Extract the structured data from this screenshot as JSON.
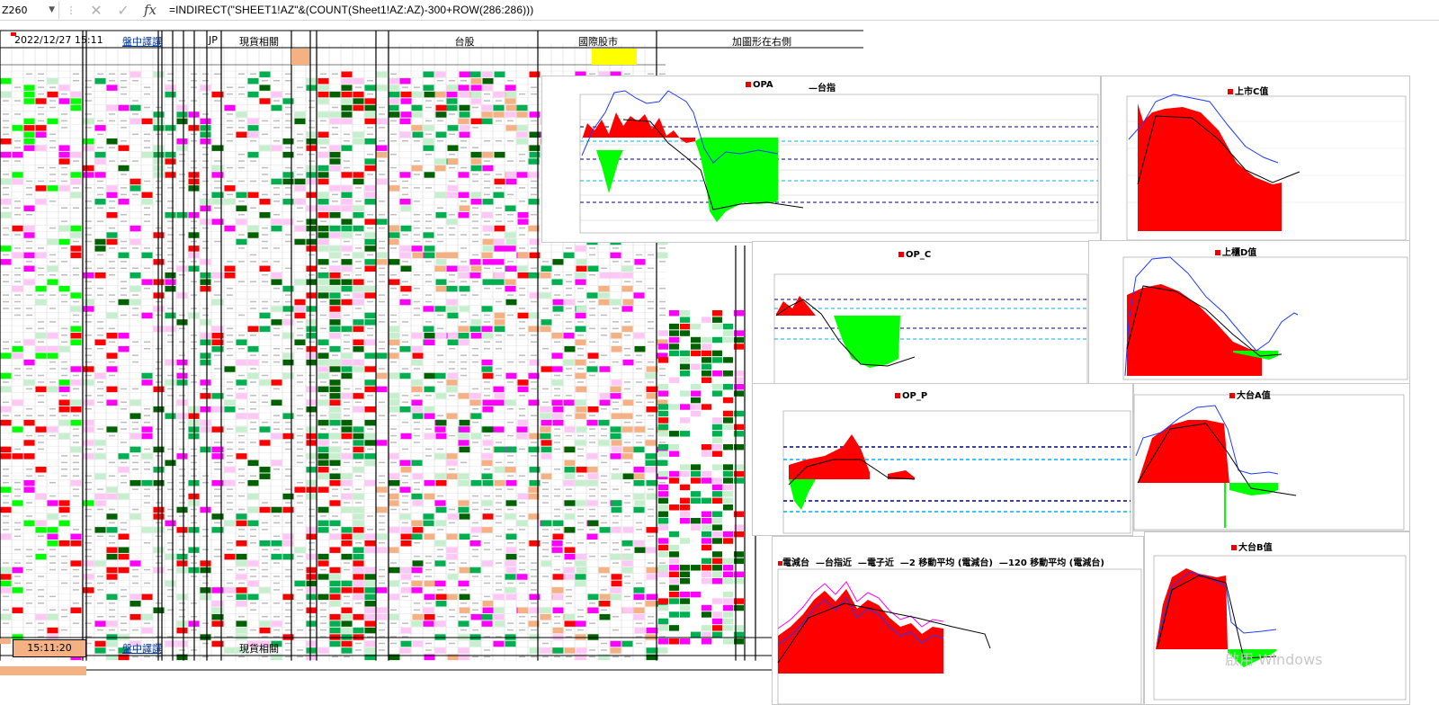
{
  "formula_bar": {
    "name_box": "Z260",
    "formula": "=INDIRECT(\"SHEET1!AZ\"&(COUNT(Sheet1!AZ:AZ)-300+ROW(286:286)))",
    "cancel_glyph": "✕",
    "confirm_glyph": "✓",
    "fx_glyph": "fx"
  },
  "sheet": {
    "date_time": "2022/12/27 15:11",
    "link_intraday": "盤中譯譔",
    "col_jp": "JP",
    "col_spot": "現貨相關",
    "col_tw_stocks": "台股",
    "col_intl": "國際股市",
    "col_add_chart": "加圖形在右側",
    "bottom_time": "15:11:20",
    "bottom_link_intraday": "盤中譯譔",
    "bottom_spot": "現貨相關"
  },
  "charts": {
    "opa": {
      "title": "OPA",
      "legend2": "台指"
    },
    "op_c": {
      "title": "OP_C"
    },
    "op_p": {
      "title": "OP_P"
    },
    "listed_c": {
      "title": "上市C值"
    },
    "otc_d": {
      "title": "上櫃D值"
    },
    "big_a": {
      "title": "大台A值"
    },
    "big_b": {
      "title": "大台B值"
    },
    "elec": {
      "title": "電減台",
      "series": [
        "台指近",
        "電子近",
        "2 移動平均 (電減台)",
        "120 移動平均 (電減台)"
      ]
    }
  },
  "watermark": "啟用 Windows",
  "colors": {
    "red": "#ff0000",
    "green": "#00ff00",
    "dark_green": "#006100",
    "magenta": "#ff00ff",
    "pink": "#ffc7f5",
    "light_green": "#c6efce",
    "orange": "#f4b183",
    "yellow": "#ffff00",
    "navy": "#000080",
    "blue_line": "#1f3bff",
    "link_blue": "#00349a"
  }
}
